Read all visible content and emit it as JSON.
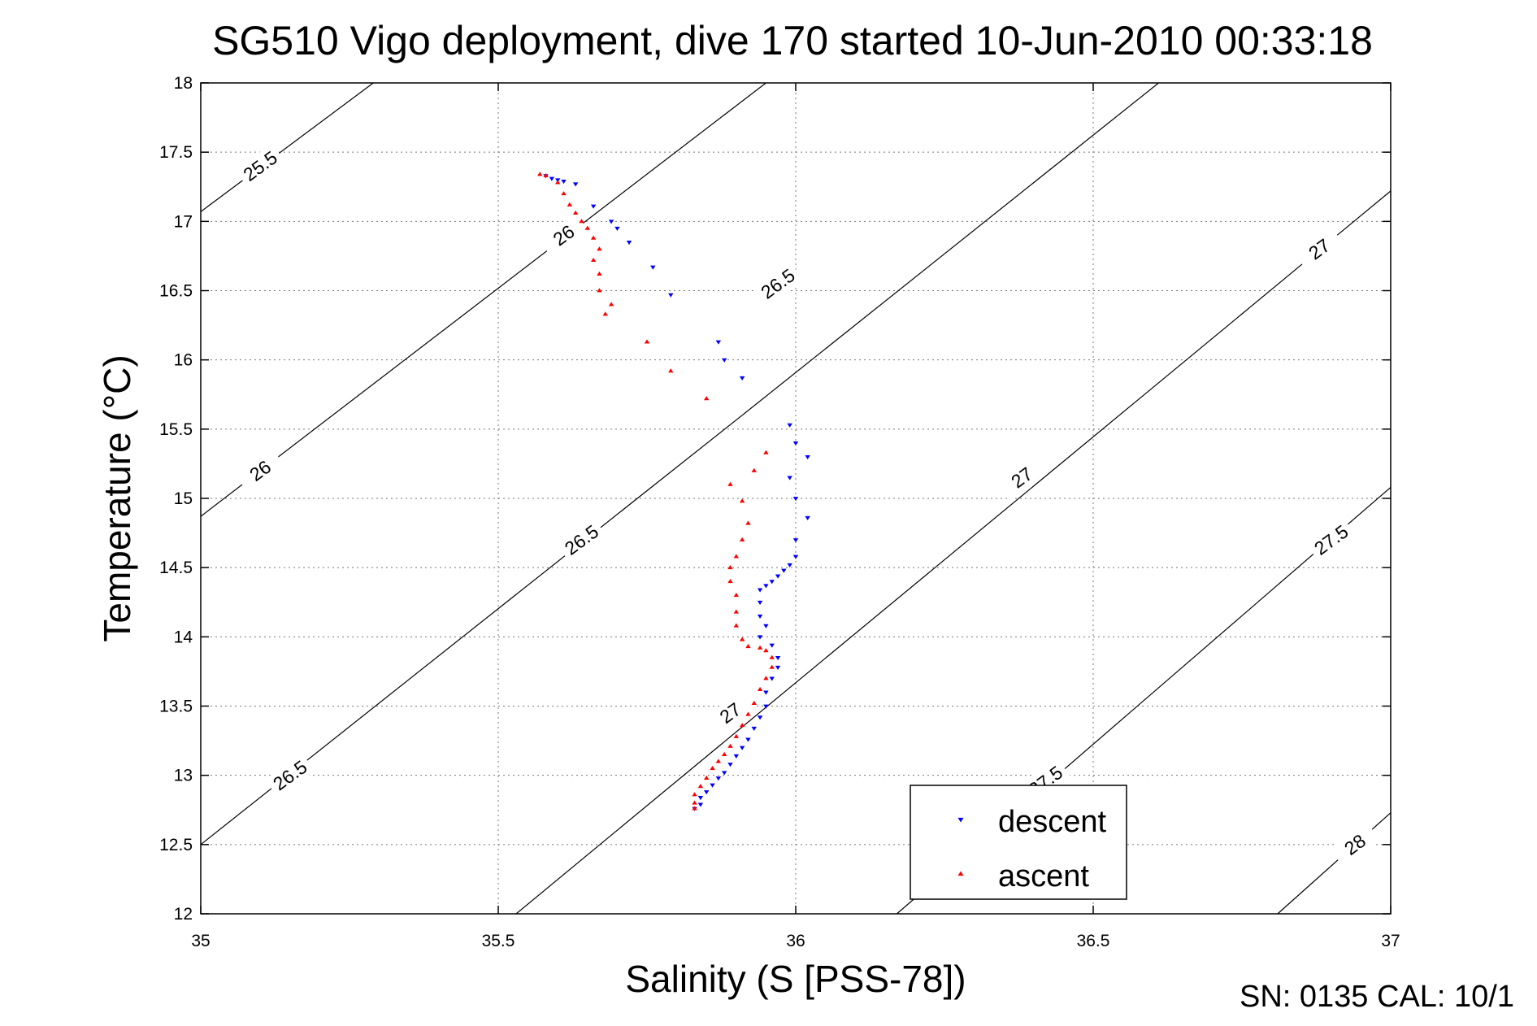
{
  "chart_data": {
    "type": "scatter",
    "title": "SG510 Vigo deployment, dive 170 started 10-Jun-2010 00:33:18",
    "xlabel": "Salinity (S [PSS-78])",
    "ylabel": "Temperature (°C)",
    "xlim": [
      35,
      37
    ],
    "ylim": [
      12,
      18
    ],
    "x_ticks": [
      "35",
      "35.5",
      "36",
      "36.5",
      "37"
    ],
    "y_ticks": [
      "12",
      "12.5",
      "13",
      "13.5",
      "14",
      "14.5",
      "15",
      "15.5",
      "16",
      "16.5",
      "17",
      "17.5",
      "18"
    ],
    "grid": true,
    "legend": {
      "position": "bottom-right",
      "entries": [
        "descent",
        "ascent"
      ]
    },
    "density_contours": [
      {
        "label": "25.5",
        "points": [
          [
            35.0,
            17.07
          ],
          [
            35.29,
            18.0
          ]
        ]
      },
      {
        "label": "26",
        "points": [
          [
            35.0,
            14.87
          ],
          [
            35.95,
            18.0
          ]
        ]
      },
      {
        "label": "26",
        "points": [
          [
            35.0,
            14.87
          ],
          [
            35.95,
            18.0
          ]
        ]
      },
      {
        "label": "26.5",
        "points": [
          [
            35.0,
            12.5
          ],
          [
            35.91,
            15.6
          ]
        ]
      },
      {
        "label": "26.5",
        "points": [
          [
            35.0,
            12.5
          ],
          [
            35.91,
            15.6
          ]
        ]
      },
      {
        "label": "26.5",
        "points": [
          [
            35.91,
            15.6
          ],
          [
            36.61,
            18.0
          ]
        ]
      },
      {
        "label": "27",
        "points": [
          [
            35.53,
            12.0
          ],
          [
            37.0,
            17.22
          ]
        ]
      },
      {
        "label": "27",
        "points": [
          [
            35.53,
            12.0
          ],
          [
            37.0,
            17.22
          ]
        ]
      },
      {
        "label": "27",
        "points": [
          [
            35.53,
            12.0
          ],
          [
            37.0,
            17.22
          ]
        ]
      },
      {
        "label": "27.5",
        "points": [
          [
            36.17,
            12.0
          ],
          [
            37.0,
            15.08
          ]
        ]
      },
      {
        "label": "27.5",
        "points": [
          [
            36.17,
            12.0
          ],
          [
            37.0,
            15.08
          ]
        ]
      },
      {
        "label": "28",
        "points": [
          [
            36.81,
            12.0
          ],
          [
            37.0,
            12.73
          ]
        ]
      }
    ],
    "contour_labels": [
      {
        "text": "25.5",
        "x": 35.1,
        "y": 17.4
      },
      {
        "text": "26",
        "x": 35.61,
        "y": 16.9
      },
      {
        "text": "26",
        "x": 35.1,
        "y": 15.2
      },
      {
        "text": "26.5",
        "x": 35.97,
        "y": 16.55
      },
      {
        "text": "26.5",
        "x": 35.64,
        "y": 14.7
      },
      {
        "text": "26.5",
        "x": 35.15,
        "y": 13.0
      },
      {
        "text": "27",
        "x": 36.88,
        "y": 16.8
      },
      {
        "text": "27",
        "x": 36.38,
        "y": 15.15
      },
      {
        "text": "27",
        "x": 35.89,
        "y": 13.45
      },
      {
        "text": "27.5",
        "x": 36.9,
        "y": 14.7
      },
      {
        "text": "27.5",
        "x": 36.42,
        "y": 12.96
      },
      {
        "text": "28",
        "x": 36.94,
        "y": 12.5
      }
    ],
    "series": [
      {
        "name": "descent",
        "color": "#0000ff",
        "marker": "triangle-down",
        "points": [
          [
            35.58,
            17.33
          ],
          [
            35.59,
            17.31
          ],
          [
            35.6,
            17.3
          ],
          [
            35.61,
            17.29
          ],
          [
            35.63,
            17.27
          ],
          [
            35.66,
            17.11
          ],
          [
            35.69,
            17.0
          ],
          [
            35.7,
            16.95
          ],
          [
            35.72,
            16.85
          ],
          [
            35.76,
            16.67
          ],
          [
            35.79,
            16.47
          ],
          [
            35.87,
            16.13
          ],
          [
            35.88,
            16.0
          ],
          [
            35.91,
            15.87
          ],
          [
            35.99,
            15.53
          ],
          [
            36.0,
            15.4
          ],
          [
            36.02,
            15.3
          ],
          [
            35.99,
            15.15
          ],
          [
            36.0,
            15.0
          ],
          [
            36.02,
            14.86
          ],
          [
            36.0,
            14.7
          ],
          [
            36.0,
            14.58
          ],
          [
            35.99,
            14.52
          ],
          [
            35.98,
            14.48
          ],
          [
            35.97,
            14.44
          ],
          [
            35.96,
            14.4
          ],
          [
            35.95,
            14.37
          ],
          [
            35.94,
            14.34
          ],
          [
            35.94,
            14.25
          ],
          [
            35.94,
            14.15
          ],
          [
            35.95,
            14.08
          ],
          [
            35.94,
            14.0
          ],
          [
            35.96,
            13.94
          ],
          [
            35.97,
            13.85
          ],
          [
            35.97,
            13.78
          ],
          [
            35.96,
            13.7
          ],
          [
            35.95,
            13.6
          ],
          [
            35.95,
            13.5
          ],
          [
            35.94,
            13.42
          ],
          [
            35.93,
            13.34
          ],
          [
            35.92,
            13.26
          ],
          [
            35.91,
            13.2
          ],
          [
            35.9,
            13.14
          ],
          [
            35.89,
            13.08
          ],
          [
            35.88,
            13.02
          ],
          [
            35.87,
            12.98
          ],
          [
            35.86,
            12.93
          ],
          [
            35.85,
            12.88
          ],
          [
            35.84,
            12.84
          ],
          [
            35.84,
            12.79
          ],
          [
            35.83,
            12.76
          ]
        ]
      },
      {
        "name": "ascent",
        "color": "#ff0000",
        "marker": "triangle-up",
        "points": [
          [
            35.57,
            17.34
          ],
          [
            35.58,
            17.33
          ],
          [
            35.6,
            17.28
          ],
          [
            35.61,
            17.2
          ],
          [
            35.62,
            17.12
          ],
          [
            35.63,
            17.06
          ],
          [
            35.64,
            17.0
          ],
          [
            35.65,
            16.95
          ],
          [
            35.66,
            16.88
          ],
          [
            35.67,
            16.8
          ],
          [
            35.66,
            16.72
          ],
          [
            35.67,
            16.62
          ],
          [
            35.67,
            16.5
          ],
          [
            35.69,
            16.4
          ],
          [
            35.68,
            16.33
          ],
          [
            35.75,
            16.13
          ],
          [
            35.79,
            15.92
          ],
          [
            35.85,
            15.72
          ],
          [
            35.95,
            15.33
          ],
          [
            35.93,
            15.2
          ],
          [
            35.89,
            15.1
          ],
          [
            35.91,
            14.98
          ],
          [
            35.92,
            14.82
          ],
          [
            35.91,
            14.7
          ],
          [
            35.9,
            14.58
          ],
          [
            35.89,
            14.5
          ],
          [
            35.89,
            14.4
          ],
          [
            35.9,
            14.3
          ],
          [
            35.9,
            14.18
          ],
          [
            35.9,
            14.08
          ],
          [
            35.91,
            13.98
          ],
          [
            35.92,
            13.93
          ],
          [
            35.94,
            13.92
          ],
          [
            35.95,
            13.9
          ],
          [
            35.96,
            13.85
          ],
          [
            35.96,
            13.78
          ],
          [
            35.95,
            13.7
          ],
          [
            35.94,
            13.62
          ],
          [
            35.93,
            13.52
          ],
          [
            35.92,
            13.44
          ],
          [
            35.91,
            13.36
          ],
          [
            35.9,
            13.28
          ],
          [
            35.89,
            13.21
          ],
          [
            35.88,
            13.15
          ],
          [
            35.87,
            13.1
          ],
          [
            35.86,
            13.05
          ],
          [
            35.85,
            12.98
          ],
          [
            35.84,
            12.92
          ],
          [
            35.83,
            12.86
          ],
          [
            35.83,
            12.8
          ],
          [
            35.83,
            12.76
          ]
        ]
      }
    ]
  },
  "footer": {
    "text": "SN: 0135  CAL: 10/1"
  }
}
